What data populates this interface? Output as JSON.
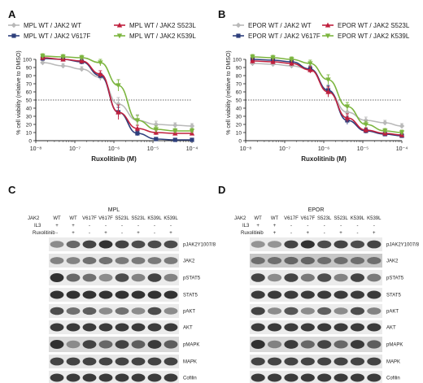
{
  "chart_data": [
    {
      "panel": "A",
      "type": "line",
      "xlabel": "Ruxolitinib (M)",
      "ylabel": "% cell viability (relative to DMSO)",
      "x_scale": "log",
      "xlim": [
        1e-08,
        0.0001
      ],
      "ylim": [
        0,
        110
      ],
      "yticks": [
        0,
        10,
        20,
        30,
        40,
        50,
        60,
        70,
        80,
        90,
        100
      ],
      "xtick_labels": [
        "10⁻⁸",
        "10⁻⁷",
        "10⁻⁶",
        "10⁻⁵",
        "10⁻⁴"
      ],
      "reference_line_y": 50,
      "legend_placement": "top",
      "series": [
        {
          "name": "MPL WT / JAK2 WT",
          "color": "#b9b9b9",
          "marker": "diamond",
          "x": [
            1.5e-08,
            5e-08,
            1.5e-07,
            4.5e-07,
            1.3e-06,
            4e-06,
            1.2e-05,
            3.7e-05,
            0.0001
          ],
          "y": [
            96,
            92,
            88,
            78,
            45,
            25,
            20,
            19,
            18
          ],
          "err": [
            3,
            3,
            3,
            4,
            8,
            7,
            4,
            3,
            3
          ]
        },
        {
          "name": "MPL WT / JAK2 V617F",
          "color": "#2e3f7c",
          "marker": "square",
          "x": [
            1.5e-08,
            5e-08,
            1.5e-07,
            4.5e-07,
            1.3e-06,
            4e-06,
            1.2e-05,
            3.7e-05,
            0.0001
          ],
          "y": [
            101,
            100,
            97,
            80,
            35,
            9,
            2,
            1,
            1
          ],
          "err": [
            2,
            2,
            3,
            3,
            6,
            3,
            2,
            1,
            1
          ]
        },
        {
          "name": "MPL WT / JAK2 S523L",
          "color": "#c0203e",
          "marker": "triangle",
          "x": [
            1.5e-08,
            5e-08,
            1.5e-07,
            4.5e-07,
            1.3e-06,
            4e-06,
            1.2e-05,
            3.7e-05,
            0.0001
          ],
          "y": [
            102,
            100,
            98,
            82,
            35,
            15,
            10,
            9,
            9
          ],
          "err": [
            2,
            2,
            3,
            4,
            9,
            4,
            3,
            2,
            2
          ]
        },
        {
          "name": "MPL WT / JAK2 K539L",
          "color": "#7cb53f",
          "marker": "triangle-down",
          "x": [
            1.5e-08,
            5e-08,
            1.5e-07,
            4.5e-07,
            1.3e-06,
            4e-06,
            1.2e-05,
            3.7e-05,
            0.0001
          ],
          "y": [
            104,
            103,
            102,
            96,
            68,
            25,
            14,
            12,
            12
          ],
          "err": [
            3,
            3,
            3,
            4,
            7,
            6,
            4,
            3,
            3
          ]
        }
      ]
    },
    {
      "panel": "B",
      "type": "line",
      "xlabel": "Ruxolitinib (M)",
      "ylabel": "% cell viability (relative to DMSO)",
      "x_scale": "log",
      "xlim": [
        1e-08,
        0.0001
      ],
      "ylim": [
        0,
        110
      ],
      "yticks": [
        0,
        10,
        20,
        30,
        40,
        50,
        60,
        70,
        80,
        90,
        100
      ],
      "xtick_labels": [
        "10⁻⁸",
        "10⁻⁷",
        "10⁻⁶",
        "10⁻⁵",
        "10⁻⁴"
      ],
      "reference_line_y": 50,
      "legend_placement": "top",
      "series": [
        {
          "name": "EPOR WT / JAK2 WT",
          "color": "#b9b9b9",
          "marker": "diamond",
          "x": [
            1.5e-08,
            5e-08,
            1.5e-07,
            4.5e-07,
            1.3e-06,
            4e-06,
            1.2e-05,
            3.7e-05,
            0.0001
          ],
          "y": [
            95,
            94,
            92,
            88,
            60,
            35,
            25,
            22,
            18
          ],
          "err": [
            3,
            3,
            3,
            4,
            7,
            6,
            4,
            3,
            3
          ]
        },
        {
          "name": "EPOR WT / JAK2 V617F",
          "color": "#2e3f7c",
          "marker": "square",
          "x": [
            1.5e-08,
            5e-08,
            1.5e-07,
            4.5e-07,
            1.3e-06,
            4e-06,
            1.2e-05,
            3.7e-05,
            0.0001
          ],
          "y": [
            100,
            99,
            97,
            88,
            62,
            25,
            12,
            8,
            6
          ],
          "err": [
            3,
            3,
            3,
            4,
            6,
            5,
            3,
            2,
            2
          ]
        },
        {
          "name": "EPOR WT / JAK2 S523L",
          "color": "#c0203e",
          "marker": "triangle",
          "x": [
            1.5e-08,
            5e-08,
            1.5e-07,
            4.5e-07,
            1.3e-06,
            4e-06,
            1.2e-05,
            3.7e-05,
            0.0001
          ],
          "y": [
            98,
            97,
            95,
            87,
            60,
            28,
            13,
            9,
            7
          ],
          "err": [
            3,
            3,
            3,
            4,
            6,
            5,
            3,
            2,
            2
          ]
        },
        {
          "name": "EPOR WT / JAK2 K539L",
          "color": "#7cb53f",
          "marker": "triangle-down",
          "x": [
            1.5e-08,
            5e-08,
            1.5e-07,
            4.5e-07,
            1.3e-06,
            4e-06,
            1.2e-05,
            3.7e-05,
            0.0001
          ],
          "y": [
            103,
            102,
            100,
            95,
            75,
            42,
            20,
            12,
            10
          ],
          "err": [
            3,
            3,
            3,
            4,
            6,
            5,
            4,
            3,
            3
          ]
        }
      ]
    }
  ],
  "panels": {
    "a": "A",
    "b": "B",
    "c": "C",
    "d": "D"
  },
  "blots": [
    {
      "panel": "C",
      "title": "MPL",
      "row_labels": [
        "JAK2",
        "IL3",
        "Ruxolitinib"
      ],
      "jak2": [
        "WT",
        "WT",
        "V617F",
        "V617F",
        "S523L",
        "S523L",
        "K539L",
        "K539L"
      ],
      "il3": [
        "+",
        "+",
        "-",
        "-",
        "-",
        "-",
        "-",
        "-"
      ],
      "rux": [
        "-",
        "+",
        "-",
        "+",
        "-",
        "+",
        "-",
        "+"
      ],
      "bands": [
        {
          "label": "pJAK2Y1007/8",
          "intensity": [
            0.35,
            0.55,
            0.75,
            0.85,
            0.75,
            0.7,
            0.7,
            0.7
          ],
          "bg": 0.92
        },
        {
          "label": "JAK2",
          "intensity": [
            0.4,
            0.4,
            0.5,
            0.5,
            0.45,
            0.45,
            0.45,
            0.45
          ],
          "bg": 0.9
        },
        {
          "label": "pSTAT5",
          "intensity": [
            0.85,
            0.55,
            0.5,
            0.35,
            0.7,
            0.4,
            0.75,
            0.4
          ],
          "bg": 0.92
        },
        {
          "label": "STAT5",
          "intensity": [
            0.85,
            0.85,
            0.85,
            0.85,
            0.85,
            0.85,
            0.85,
            0.85
          ],
          "bg": 0.92
        },
        {
          "label": "pAKT",
          "intensity": [
            0.7,
            0.5,
            0.6,
            0.35,
            0.5,
            0.35,
            0.7,
            0.35
          ],
          "bg": 0.92
        },
        {
          "label": "AKT",
          "intensity": [
            0.8,
            0.8,
            0.8,
            0.8,
            0.8,
            0.8,
            0.8,
            0.8
          ],
          "bg": 0.92
        },
        {
          "label": "pMAPK",
          "intensity": [
            0.85,
            0.35,
            0.75,
            0.55,
            0.75,
            0.6,
            0.8,
            0.6
          ],
          "bg": 0.85
        },
        {
          "label": "MAPK",
          "intensity": [
            0.75,
            0.75,
            0.75,
            0.75,
            0.75,
            0.75,
            0.75,
            0.75
          ],
          "bg": 0.9
        },
        {
          "label": "Cofilin",
          "intensity": [
            0.8,
            0.8,
            0.8,
            0.8,
            0.8,
            0.8,
            0.8,
            0.8
          ],
          "bg": 0.92
        }
      ]
    },
    {
      "panel": "D",
      "title": "EPOR",
      "row_labels": [
        "JAK2",
        "IL3",
        "Ruxolitinib"
      ],
      "jak2": [
        "WT",
        "WT",
        "V617F",
        "V617F",
        "S523L",
        "S523L",
        "K539L",
        "K539L"
      ],
      "il3": [
        "+",
        "+",
        "-",
        "-",
        "-",
        "-",
        "-",
        "-"
      ],
      "rux": [
        "-",
        "+",
        "-",
        "+",
        "-",
        "+",
        "-",
        "+"
      ],
      "bands": [
        {
          "label": "pJAK2Y1007/8",
          "intensity": [
            0.3,
            0.3,
            0.75,
            0.85,
            0.7,
            0.75,
            0.7,
            0.75
          ],
          "bg": 0.92
        },
        {
          "label": "JAK2",
          "intensity": [
            0.5,
            0.5,
            0.55,
            0.55,
            0.5,
            0.5,
            0.5,
            0.5
          ],
          "bg": 0.78
        },
        {
          "label": "pSTAT5",
          "intensity": [
            0.75,
            0.35,
            0.75,
            0.45,
            0.7,
            0.4,
            0.75,
            0.45
          ],
          "bg": 0.92
        },
        {
          "label": "STAT5",
          "intensity": [
            0.8,
            0.8,
            0.8,
            0.8,
            0.8,
            0.8,
            0.8,
            0.8
          ],
          "bg": 0.92
        },
        {
          "label": "pAKT",
          "intensity": [
            0.75,
            0.35,
            0.65,
            0.35,
            0.6,
            0.35,
            0.7,
            0.4
          ],
          "bg": 0.92
        },
        {
          "label": "AKT",
          "intensity": [
            0.8,
            0.8,
            0.8,
            0.8,
            0.8,
            0.8,
            0.8,
            0.8
          ],
          "bg": 0.92
        },
        {
          "label": "pMAPK",
          "intensity": [
            0.85,
            0.4,
            0.8,
            0.55,
            0.75,
            0.55,
            0.8,
            0.6
          ],
          "bg": 0.85
        },
        {
          "label": "MAPK",
          "intensity": [
            0.75,
            0.75,
            0.75,
            0.75,
            0.75,
            0.75,
            0.75,
            0.75
          ],
          "bg": 0.9
        },
        {
          "label": "Cofilin",
          "intensity": [
            0.8,
            0.8,
            0.8,
            0.8,
            0.8,
            0.8,
            0.8,
            0.8
          ],
          "bg": 0.92
        }
      ]
    }
  ]
}
